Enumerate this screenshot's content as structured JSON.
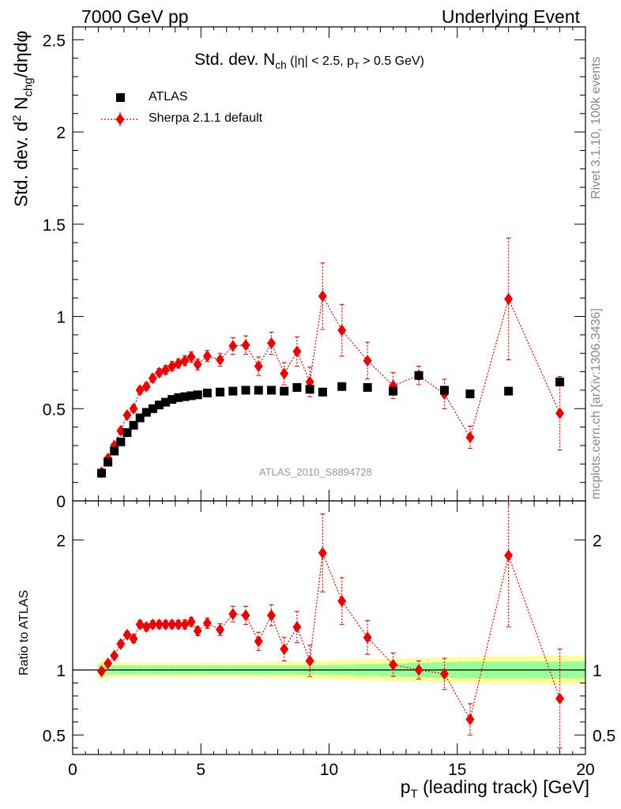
{
  "header": {
    "left": "7000 GeV pp",
    "right": "Underlying Event"
  },
  "side_labels": {
    "rivet": "Rivet 3.1.10,  100k events",
    "mcplots": "mcplots.cern.ch [arXiv:1306.3436]"
  },
  "watermark": "ATLAS_2010_S8894728",
  "title": {
    "main": "Std. dev. N",
    "sub": "ch",
    "tail": " (|η| < 2.5, p",
    "tail_sub": "T",
    "tail_end": " > 0.5 GeV)"
  },
  "ylabel": {
    "part1": "Std. dev. d",
    "sup": "2",
    "part2": " N",
    "sub": "chg",
    "part3": "/dηdφ"
  },
  "ratio_ylabel": "Ratio to ATLAS",
  "xlabel": {
    "part1": "p",
    "sub": "T",
    "part2": " (leading track) [GeV]"
  },
  "legend": {
    "atlas": "ATLAS",
    "sherpa": "Sherpa 2.1.1 default"
  },
  "colors": {
    "atlas": "#000000",
    "sherpa": "#ee0000",
    "band_inner": "#99ff99",
    "band_outer": "#ffff99"
  },
  "chart_data": [
    {
      "type": "scatter",
      "panel": "main",
      "xlim": [
        0,
        20
      ],
      "ylim": [
        0,
        2.57
      ],
      "x_ticks": [
        0,
        5,
        10,
        15,
        20
      ],
      "y_ticks": [
        0,
        0.5,
        1,
        1.5,
        2,
        2.5
      ],
      "y_tick_labels": [
        "0",
        "0.5",
        "1",
        "1.5",
        "2",
        "2.5"
      ],
      "series": [
        {
          "name": "ATLAS",
          "x": [
            1.125,
            1.375,
            1.625,
            1.875,
            2.125,
            2.375,
            2.625,
            2.875,
            3.125,
            3.375,
            3.625,
            3.875,
            4.125,
            4.375,
            4.625,
            4.875,
            5.25,
            5.75,
            6.25,
            6.75,
            7.25,
            7.75,
            8.25,
            8.75,
            9.25,
            9.75,
            10.5,
            11.5,
            12.5,
            13.5,
            14.5,
            15.5,
            17.0,
            19.0
          ],
          "y": [
            0.15,
            0.21,
            0.27,
            0.32,
            0.37,
            0.41,
            0.45,
            0.48,
            0.5,
            0.52,
            0.535,
            0.55,
            0.56,
            0.565,
            0.57,
            0.575,
            0.585,
            0.59,
            0.595,
            0.6,
            0.6,
            0.6,
            0.595,
            0.615,
            0.605,
            0.59,
            0.62,
            0.615,
            0.595,
            0.68,
            0.6,
            0.58,
            0.595,
            0.645
          ]
        },
        {
          "name": "Sherpa 2.1.1 default",
          "x": [
            1.125,
            1.375,
            1.625,
            1.875,
            2.125,
            2.375,
            2.625,
            2.875,
            3.125,
            3.375,
            3.625,
            3.875,
            4.125,
            4.375,
            4.625,
            4.875,
            5.25,
            5.75,
            6.25,
            6.75,
            7.25,
            7.75,
            8.25,
            8.75,
            9.25,
            9.75,
            10.5,
            11.5,
            12.5,
            13.5,
            14.5,
            15.5,
            17.0,
            19.0
          ],
          "y": [
            0.155,
            0.23,
            0.3,
            0.38,
            0.465,
            0.5,
            0.6,
            0.62,
            0.665,
            0.695,
            0.71,
            0.73,
            0.745,
            0.76,
            0.78,
            0.74,
            0.785,
            0.765,
            0.84,
            0.845,
            0.73,
            0.855,
            0.69,
            0.81,
            0.645,
            1.11,
            0.925,
            0.76,
            0.625,
            0.68,
            0.58,
            0.345,
            1.095,
            0.475
          ],
          "yerr": [
            0.01,
            0.012,
            0.012,
            0.015,
            0.015,
            0.018,
            0.02,
            0.02,
            0.022,
            0.022,
            0.024,
            0.025,
            0.025,
            0.027,
            0.028,
            0.03,
            0.03,
            0.035,
            0.045,
            0.05,
            0.05,
            0.06,
            0.06,
            0.08,
            0.08,
            0.18,
            0.14,
            0.1,
            0.07,
            0.05,
            0.08,
            0.06,
            0.33,
            0.2
          ]
        }
      ]
    },
    {
      "type": "scatter",
      "panel": "ratio",
      "xlim": [
        0,
        20
      ],
      "ylim": [
        0.35,
        2.3
      ],
      "x_ticks": [
        0,
        5,
        10,
        15,
        20
      ],
      "x_tick_labels": [
        "0",
        "5",
        "10",
        "15",
        "20"
      ],
      "y_ticks": [
        0.5,
        1,
        2
      ],
      "y_tick_labels": [
        "0.5",
        "1",
        "2"
      ],
      "reference_line": 1,
      "band_edges": [
        1.0,
        1.25,
        1.5,
        1.75,
        2.0,
        2.25,
        2.5,
        2.75,
        3.0,
        3.25,
        3.5,
        3.75,
        4.0,
        4.25,
        4.5,
        4.75,
        5.0,
        5.5,
        6.0,
        6.5,
        7.0,
        7.5,
        8.0,
        8.5,
        9.0,
        9.5,
        10.0,
        11.0,
        12.0,
        13.0,
        14.0,
        15.0,
        16.0,
        18.0,
        20.0
      ],
      "band_inner": [
        0.045,
        0.035,
        0.035,
        0.035,
        0.035,
        0.035,
        0.035,
        0.035,
        0.035,
        0.035,
        0.035,
        0.035,
        0.035,
        0.035,
        0.035,
        0.035,
        0.035,
        0.035,
        0.035,
        0.035,
        0.035,
        0.035,
        0.035,
        0.035,
        0.035,
        0.035,
        0.04,
        0.045,
        0.05,
        0.055,
        0.06,
        0.065,
        0.065,
        0.065
      ],
      "band_outer": [
        0.075,
        0.055,
        0.055,
        0.055,
        0.055,
        0.055,
        0.055,
        0.055,
        0.055,
        0.055,
        0.055,
        0.055,
        0.055,
        0.055,
        0.055,
        0.055,
        0.055,
        0.055,
        0.055,
        0.055,
        0.058,
        0.06,
        0.062,
        0.065,
        0.068,
        0.07,
        0.075,
        0.08,
        0.085,
        0.09,
        0.095,
        0.1,
        0.105,
        0.11
      ],
      "series": [
        {
          "name": "Sherpa 2.1.1 default",
          "x": [
            1.125,
            1.375,
            1.625,
            1.875,
            2.125,
            2.375,
            2.625,
            2.875,
            3.125,
            3.375,
            3.625,
            3.875,
            4.125,
            4.375,
            4.625,
            4.875,
            5.25,
            5.75,
            6.25,
            6.75,
            7.25,
            7.75,
            8.25,
            8.75,
            9.25,
            9.75,
            10.5,
            11.5,
            12.5,
            13.5,
            14.5,
            15.5,
            17.0,
            19.0
          ],
          "y": [
            0.99,
            1.05,
            1.11,
            1.2,
            1.27,
            1.24,
            1.35,
            1.33,
            1.35,
            1.35,
            1.35,
            1.35,
            1.35,
            1.35,
            1.37,
            1.3,
            1.36,
            1.31,
            1.43,
            1.42,
            1.22,
            1.42,
            1.16,
            1.33,
            1.07,
            1.9,
            1.53,
            1.25,
            1.04,
            1.0,
            0.97,
            0.62,
            1.88,
            0.78
          ],
          "yerr": [
            0.02,
            0.02,
            0.02,
            0.025,
            0.025,
            0.03,
            0.03,
            0.03,
            0.03,
            0.03,
            0.03,
            0.03,
            0.03,
            0.035,
            0.035,
            0.035,
            0.04,
            0.045,
            0.06,
            0.07,
            0.07,
            0.08,
            0.09,
            0.12,
            0.12,
            0.3,
            0.18,
            0.13,
            0.09,
            0.07,
            0.12,
            0.12,
            0.55,
            0.38
          ]
        }
      ]
    }
  ]
}
